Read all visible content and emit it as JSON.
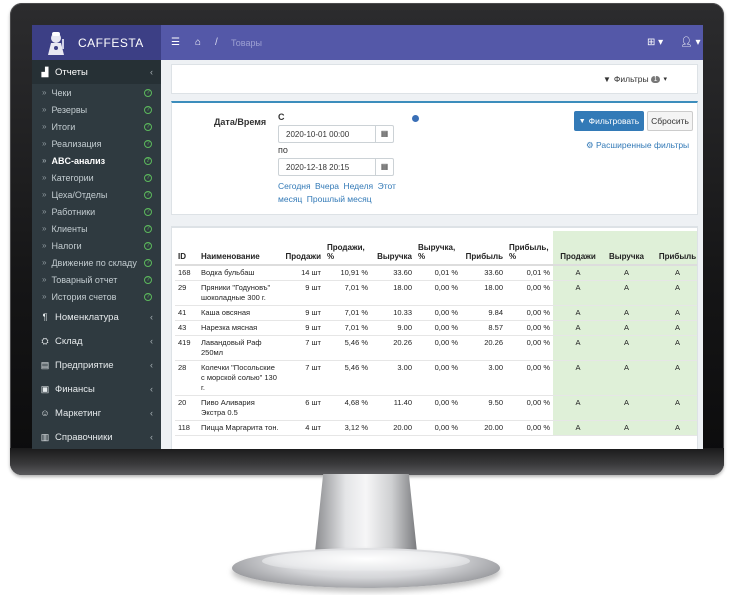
{
  "app": {
    "brand": "CAFFESTA"
  },
  "header": {
    "breadcrumb_sep": "/",
    "breadcrumb_current": "Товары"
  },
  "sidebar": {
    "sections": [
      {
        "label": "Отчеты",
        "icon": "chart-icon",
        "glyph": "▟",
        "active": true,
        "items": [
          {
            "label": "Чеки",
            "help": true
          },
          {
            "label": "Резервы",
            "help": true
          },
          {
            "label": "Итоги",
            "help": true
          },
          {
            "label": "Реализация",
            "help": true
          },
          {
            "label": "ABC-анализ",
            "help": true,
            "active": true
          },
          {
            "label": "Категории",
            "help": true
          },
          {
            "label": "Цеха/Отделы",
            "help": true
          },
          {
            "label": "Работники",
            "help": true
          },
          {
            "label": "Клиенты",
            "help": true
          },
          {
            "label": "Налоги",
            "help": true
          },
          {
            "label": "Движение по складу",
            "help": true
          },
          {
            "label": "Товарный отчет",
            "help": true
          },
          {
            "label": "История счетов",
            "help": true
          }
        ]
      },
      {
        "label": "Номенклатура",
        "icon": "cutlery-icon",
        "glyph": "¶"
      },
      {
        "label": "Склад",
        "icon": "cubes-icon",
        "glyph": "⛭"
      },
      {
        "label": "Предприятие",
        "icon": "building-icon",
        "glyph": "▤"
      },
      {
        "label": "Финансы",
        "icon": "money-icon",
        "glyph": "▣"
      },
      {
        "label": "Маркетинг",
        "icon": "smile-icon",
        "glyph": "☺"
      },
      {
        "label": "Справочники",
        "icon": "book-icon",
        "glyph": "▥"
      }
    ]
  },
  "filters": {
    "toggle_label": "Фильтры",
    "count": "1",
    "datetime_label": "Дата/Время",
    "from_label": "С",
    "from_value": "2020-10-01 00:00",
    "to_label": "по",
    "to_value": "2020-12-18 20:15",
    "quick_links": [
      "Сегодня",
      "Вчера",
      "Неделя",
      "Этот месяц",
      "Прошлый месяц"
    ],
    "filter_button": "Фильтровать",
    "reset_button": "Сбросить",
    "advanced_link": "Расширенные фильтры"
  },
  "table": {
    "columns": [
      "ID",
      "Наименование",
      "Продажи",
      "Продажи, %",
      "Выручка",
      "Выручка, %",
      "Прибыль",
      "Прибыль, %",
      "Продажи",
      "Выручка",
      "Прибыль"
    ],
    "rows": [
      [
        "168",
        "Водка бульбаш",
        "14 шт",
        "10,91 %",
        "33.60",
        "0,01 %",
        "33.60",
        "0,01 %",
        "A",
        "A",
        "A"
      ],
      [
        "29",
        "Пряники \"Годуновъ\" шоколадные 300 г.",
        "9 шт",
        "7,01 %",
        "18.00",
        "0,00 %",
        "18.00",
        "0,00 %",
        "A",
        "A",
        "A"
      ],
      [
        "41",
        "Каша овсяная",
        "9 шт",
        "7,01 %",
        "10.33",
        "0,00 %",
        "9.84",
        "0,00 %",
        "A",
        "A",
        "A"
      ],
      [
        "43",
        "Нарезка мясная",
        "9 шт",
        "7,01 %",
        "9.00",
        "0,00 %",
        "8.57",
        "0,00 %",
        "A",
        "A",
        "A"
      ],
      [
        "419",
        "Лавандовый Раф 250мл",
        "7 шт",
        "5,46 %",
        "20.26",
        "0,00 %",
        "20.26",
        "0,00 %",
        "A",
        "A",
        "A"
      ],
      [
        "28",
        "Колечки \"Посольские с морской солью\" 130 г.",
        "7 шт",
        "5,46 %",
        "3.00",
        "0,00 %",
        "3.00",
        "0,00 %",
        "A",
        "A",
        "A"
      ],
      [
        "20",
        "Пиво Аливария Экстра 0.5",
        "6 шт",
        "4,68 %",
        "11.40",
        "0,00 %",
        "9.50",
        "0,00 %",
        "A",
        "A",
        "A"
      ],
      [
        "118",
        "Пицца Маргарита тон.",
        "4 шт",
        "3,12 %",
        "20.00",
        "0,00 %",
        "20.00",
        "0,00 %",
        "A",
        "A",
        "A"
      ]
    ]
  }
}
